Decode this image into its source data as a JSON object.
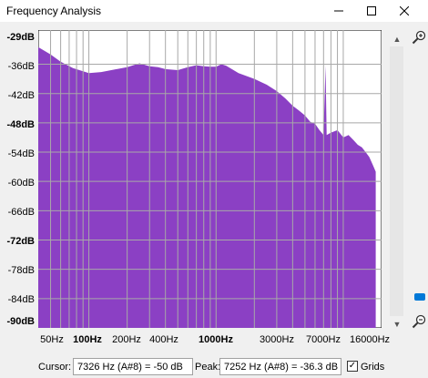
{
  "window": {
    "title": "Frequency Analysis"
  },
  "y_axis": {
    "labels": [
      "-29dB",
      "-36dB",
      "-42dB",
      "-48dB",
      "-54dB",
      "-60dB",
      "-66dB",
      "-72dB",
      "-78dB",
      "-84dB",
      "-90dB"
    ]
  },
  "x_axis": {
    "labels": [
      "50Hz",
      "100Hz",
      "200Hz",
      "400Hz",
      "1000Hz",
      "3000Hz",
      "7000Hz",
      "16000Hz"
    ]
  },
  "colors": {
    "spectrum": "#8b40c4",
    "grid": "#a8a8a8",
    "background": "#ffffff"
  },
  "statusbar": {
    "cursor_label": "Cursor:",
    "cursor_value": "7326 Hz (A#8) = -50 dB",
    "peak_label": "Peak:",
    "peak_value": "7252 Hz (A#8) = -36.3 dB",
    "grids_label": "Grids",
    "grids_checked": true
  },
  "icons": {
    "zoom_in": "zoom-in-icon",
    "zoom_out": "zoom-out-icon",
    "minimize": "minimize-icon",
    "maximize": "maximize-icon",
    "close": "close-icon"
  },
  "chart_data": {
    "type": "area",
    "xscale": "log",
    "xlim": [
      40,
      20000
    ],
    "ylim": [
      -90,
      -29
    ],
    "grid": true,
    "xlabel": "",
    "ylabel": "",
    "x_ticks": [
      50,
      100,
      200,
      400,
      1000,
      3000,
      7000,
      16000
    ],
    "y_ticks": [
      -29,
      -36,
      -42,
      -48,
      -54,
      -60,
      -66,
      -72,
      -78,
      -84,
      -90
    ],
    "series": [
      {
        "x": [
          40,
          50,
          60,
          75,
          100,
          125,
          150,
          200,
          250,
          300,
          350,
          400,
          500,
          600,
          700,
          800,
          900,
          1000,
          1100,
          1200,
          1500,
          2000,
          2500,
          3000,
          3500,
          4000,
          4500,
          5000,
          5500,
          6000,
          6500,
          7000,
          7252,
          7400,
          8000,
          9000,
          10000,
          11000,
          12000,
          13000,
          14000,
          15000,
          16000,
          17000,
          18000
        ],
        "y": [
          -32.5,
          -34,
          -35.5,
          -36.8,
          -37.8,
          -37.6,
          -37.2,
          -36.6,
          -35.8,
          -36.4,
          -36.6,
          -37.0,
          -37.2,
          -36.6,
          -36.2,
          -36.4,
          -36.5,
          -36.5,
          -36.0,
          -36.3,
          -37.8,
          -39,
          -40.2,
          -41.5,
          -43,
          -44.5,
          -45.5,
          -46.5,
          -47.8,
          -48.2,
          -49.5,
          -50.5,
          -36.3,
          -50.5,
          -50,
          -49.5,
          -51,
          -50.5,
          -51.5,
          -52.5,
          -53,
          -54,
          -55,
          -56.5,
          -58
        ]
      }
    ]
  }
}
